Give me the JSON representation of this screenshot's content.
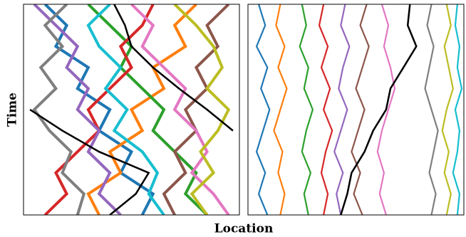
{
  "chart_data": [
    {
      "type": "line",
      "ylabel": "Time",
      "xlabel": "Location",
      "x": [
        0,
        10,
        20,
        30,
        40,
        50,
        60,
        70,
        80,
        90,
        100
      ],
      "xlim": [
        0,
        100
      ],
      "ylim": [
        0,
        100
      ],
      "series": [
        {
          "color": "#1f77b4",
          "values": [
            10,
            20,
            15,
            30,
            25,
            40,
            35,
            50,
            45,
            60,
            55
          ]
        },
        {
          "color": "#ff7f0e",
          "values": [
            80,
            70,
            75,
            60,
            65,
            50,
            55,
            40,
            45,
            30,
            35
          ]
        },
        {
          "color": "#2ca02c",
          "values": [
            30,
            40,
            50,
            45,
            55,
            65,
            60,
            70,
            80,
            75,
            85
          ]
        },
        {
          "color": "#d62728",
          "values": [
            60,
            55,
            45,
            50,
            40,
            30,
            35,
            25,
            15,
            20,
            10
          ]
        },
        {
          "color": "#9467bd",
          "values": [
            5,
            15,
            25,
            20,
            30,
            25,
            35,
            30,
            40,
            35,
            45
          ]
        },
        {
          "color": "#8c564b",
          "values": [
            95,
            85,
            90,
            80,
            85,
            75,
            80,
            70,
            75,
            65,
            70
          ]
        },
        {
          "color": "#e377c2",
          "values": [
            50,
            60,
            55,
            65,
            75,
            70,
            80,
            85,
            78,
            88,
            95
          ]
        },
        {
          "color": "#7f7f7f",
          "values": [
            20,
            10,
            18,
            8,
            15,
            5,
            12,
            22,
            18,
            28,
            25
          ]
        },
        {
          "color": "#bcbd22",
          "values": [
            70,
            80,
            88,
            92,
            85,
            95,
            90,
            82,
            88,
            78,
            85
          ]
        },
        {
          "color": "#17becf",
          "values": [
            40,
            30,
            35,
            45,
            38,
            48,
            42,
            55,
            62,
            58,
            65
          ]
        },
        {
          "color": "#000000",
          "values": [
            42,
            47,
            50,
            60,
            72,
            85,
            97,
            null,
            null,
            null,
            null
          ]
        },
        {
          "color": "#000000",
          "values": [
            null,
            null,
            null,
            null,
            null,
            3,
            18,
            35,
            58,
            52,
            40
          ]
        }
      ]
    },
    {
      "type": "line",
      "x": [
        0,
        10,
        20,
        30,
        40,
        50,
        60,
        70,
        80,
        90,
        100
      ],
      "xlim": [
        0,
        100
      ],
      "ylim": [
        0,
        100
      ],
      "series": [
        {
          "color": "#1f77b4",
          "values": [
            5,
            8,
            4,
            9,
            6,
            10,
            7,
            4,
            8,
            5,
            9
          ]
        },
        {
          "color": "#ff7f0e",
          "values": [
            15,
            13,
            17,
            14,
            18,
            15,
            12,
            16,
            14,
            17,
            15
          ]
        },
        {
          "color": "#2ca02c",
          "values": [
            25,
            27,
            24,
            28,
            26,
            30,
            27,
            25,
            29,
            26,
            28
          ]
        },
        {
          "color": "#d62728",
          "values": [
            35,
            33,
            37,
            34,
            38,
            35,
            39,
            36,
            34,
            37,
            35
          ]
        },
        {
          "color": "#9467bd",
          "values": [
            45,
            43,
            47,
            44,
            42,
            46,
            43,
            40,
            44,
            41,
            43
          ]
        },
        {
          "color": "#8c564b",
          "values": [
            55,
            52,
            56,
            53,
            50,
            54,
            51,
            48,
            52,
            49,
            53
          ]
        },
        {
          "color": "#e377c2",
          "values": [
            62,
            65,
            63,
            66,
            68,
            65,
            62,
            60,
            63,
            61,
            64
          ]
        },
        {
          "color": "#7f7f7f",
          "values": [
            85,
            83,
            86,
            84,
            82,
            85,
            88,
            86,
            84,
            87,
            85
          ]
        },
        {
          "color": "#bcbd22",
          "values": [
            92,
            94,
            91,
            93,
            95,
            92,
            90,
            93,
            91,
            94,
            92
          ]
        },
        {
          "color": "#17becf",
          "values": [
            97,
            96,
            98,
            97,
            99,
            96,
            98,
            97,
            95,
            98,
            97
          ]
        },
        {
          "color": "#000000",
          "values": [
            75,
            74,
            78,
            72,
            66,
            64,
            58,
            54,
            48,
            46,
            43
          ]
        }
      ]
    }
  ]
}
